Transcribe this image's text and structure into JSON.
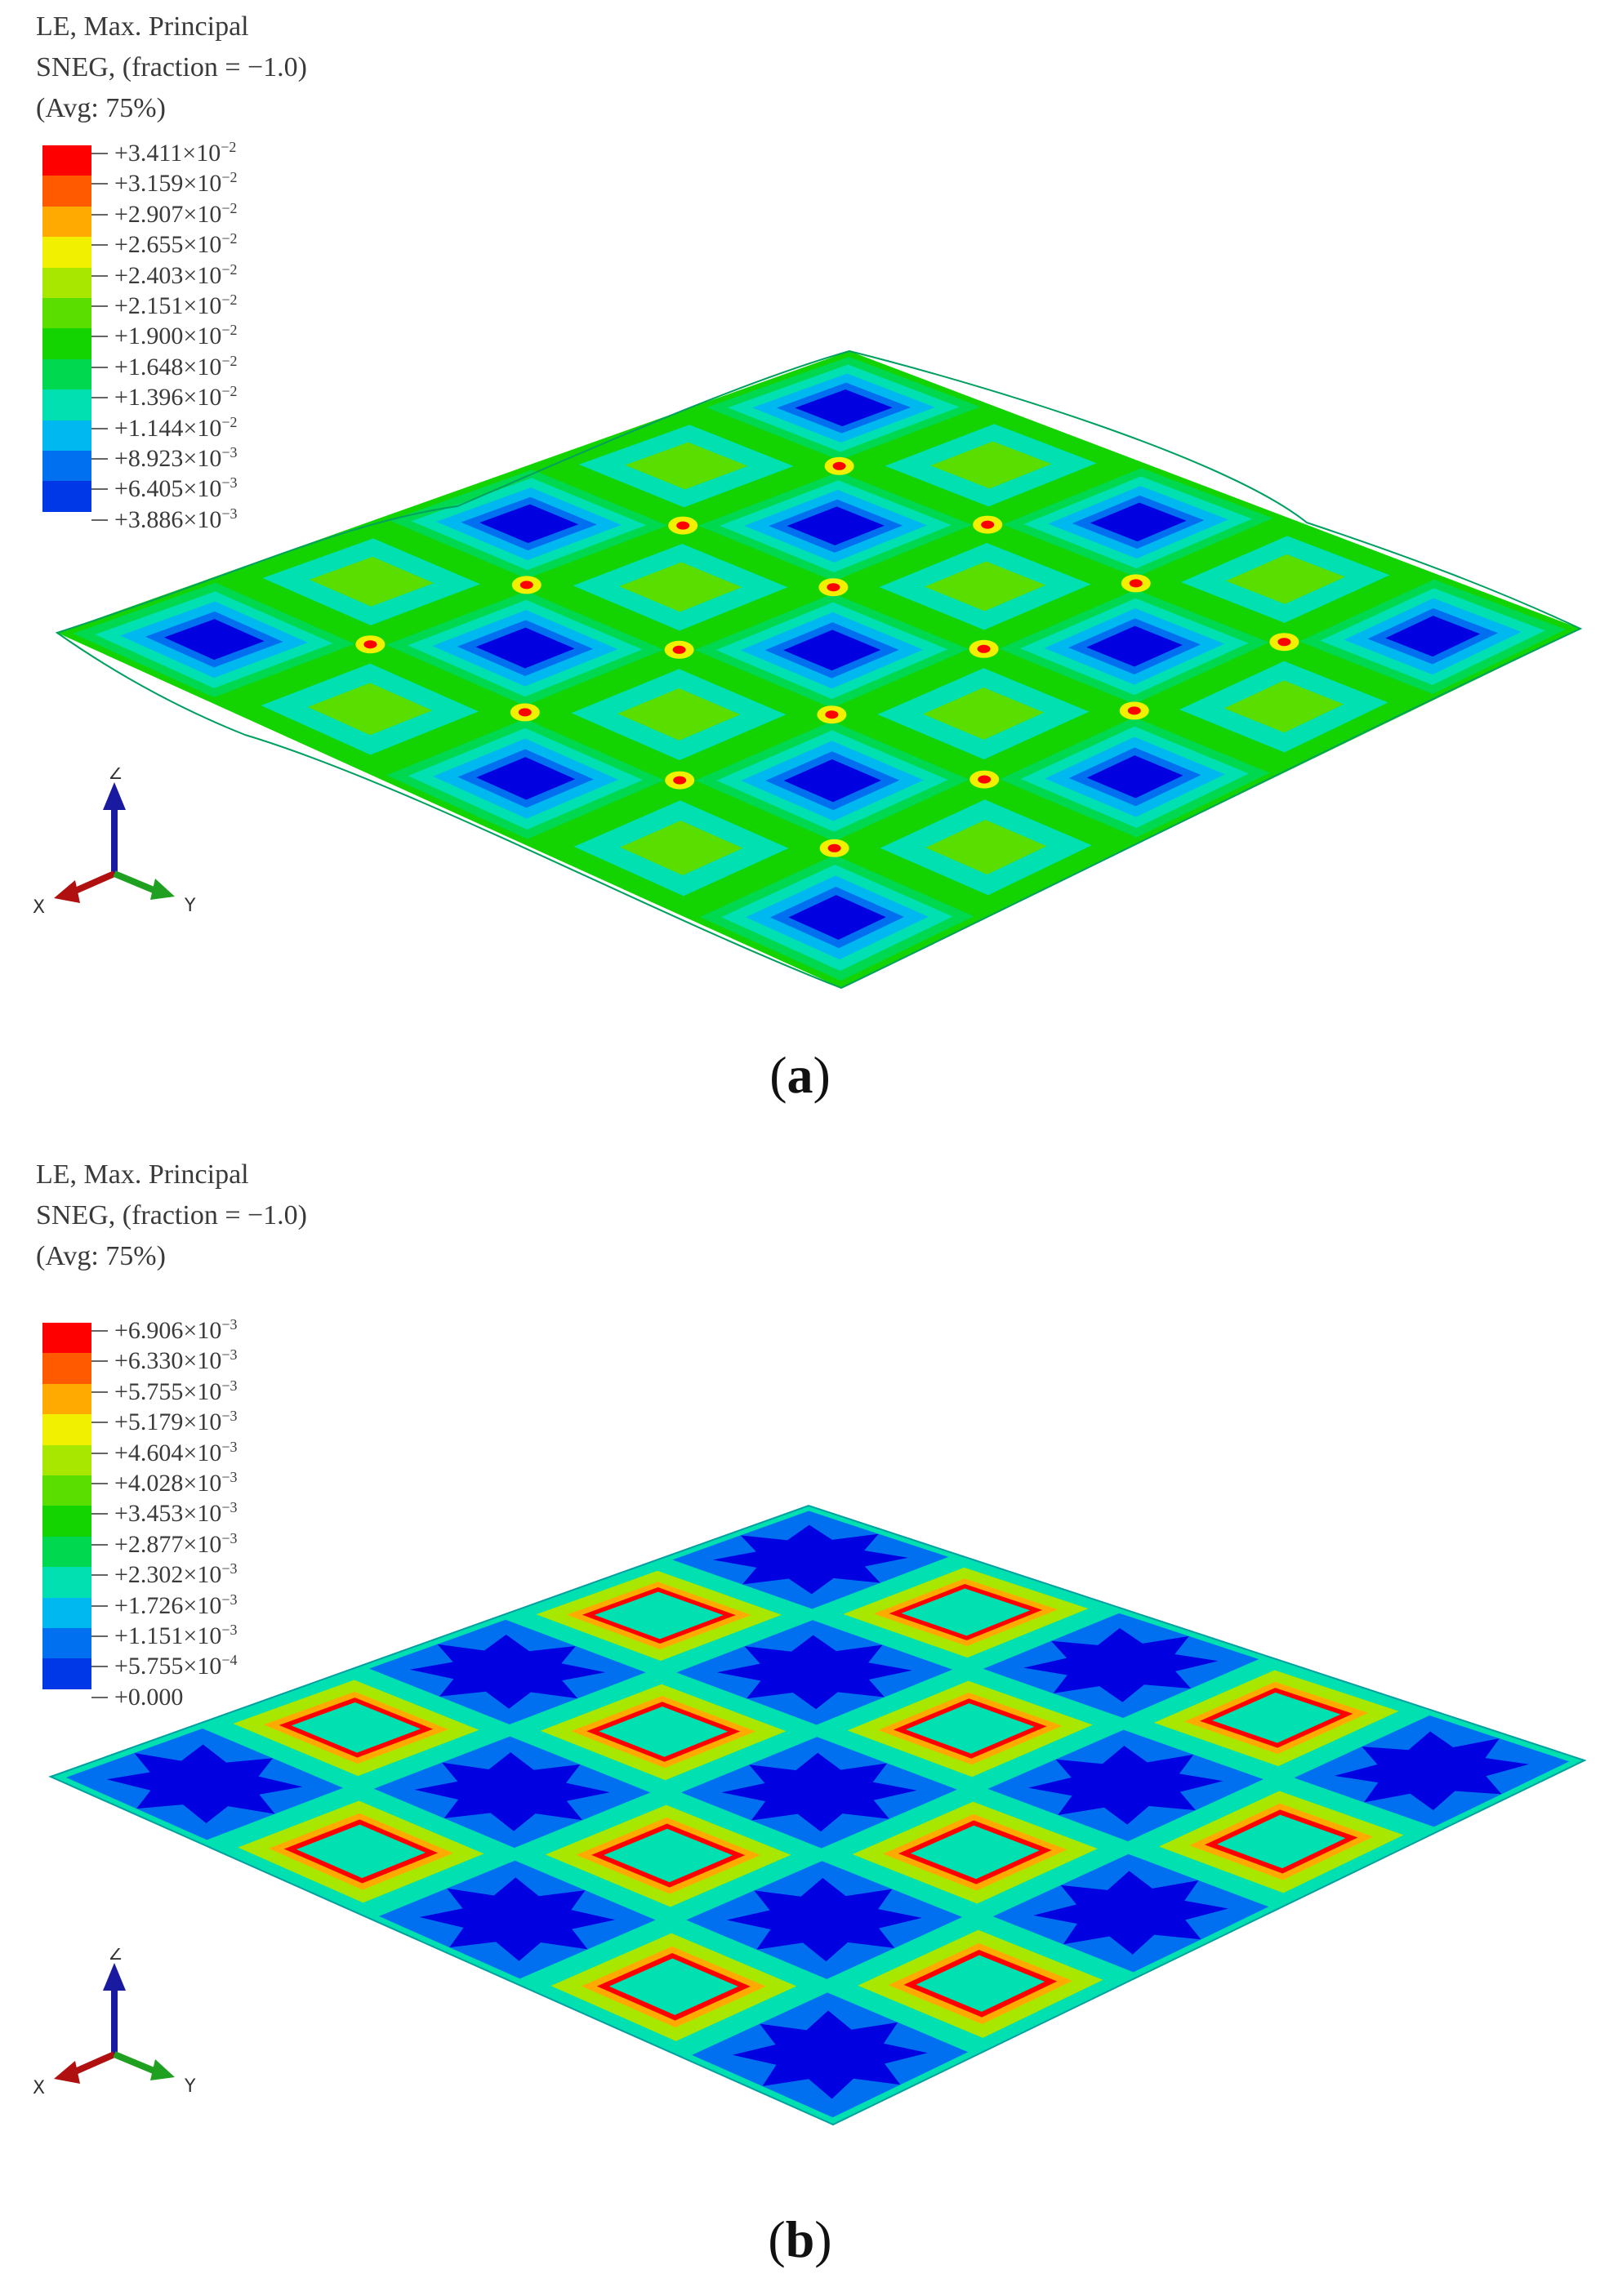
{
  "panels": [
    {
      "id": "a",
      "caption": "a",
      "legend": {
        "title_lines": [
          "LE, Max. Principal",
          "SNEG, (fraction = −1.0)",
          "(Avg: 75%)"
        ],
        "labels": [
          {
            "mant": "+3.411×10",
            "exp": "−2"
          },
          {
            "mant": "+3.159×10",
            "exp": "−2"
          },
          {
            "mant": "+2.907×10",
            "exp": "−2"
          },
          {
            "mant": "+2.655×10",
            "exp": "−2"
          },
          {
            "mant": "+2.403×10",
            "exp": "−2"
          },
          {
            "mant": "+2.151×10",
            "exp": "−2"
          },
          {
            "mant": "+1.900×10",
            "exp": "−2"
          },
          {
            "mant": "+1.648×10",
            "exp": "−2"
          },
          {
            "mant": "+1.396×10",
            "exp": "−2"
          },
          {
            "mant": "+1.144×10",
            "exp": "−2"
          },
          {
            "mant": "+8.923×10",
            "exp": "−3"
          },
          {
            "mant": "+6.405×10",
            "exp": "−3"
          },
          {
            "mant": "+3.886×10",
            "exp": "−3"
          }
        ]
      },
      "axes": {
        "z": "Z",
        "x": "X",
        "y": "Y"
      }
    },
    {
      "id": "b",
      "caption": "b",
      "legend": {
        "title_lines": [
          "LE, Max. Principal",
          "SNEG, (fraction = −1.0)",
          "(Avg: 75%)"
        ],
        "labels": [
          {
            "mant": "+6.906×10",
            "exp": "−3"
          },
          {
            "mant": "+6.330×10",
            "exp": "−3"
          },
          {
            "mant": "+5.755×10",
            "exp": "−3"
          },
          {
            "mant": "+5.179×10",
            "exp": "−3"
          },
          {
            "mant": "+4.604×10",
            "exp": "−3"
          },
          {
            "mant": "+4.028×10",
            "exp": "−3"
          },
          {
            "mant": "+3.453×10",
            "exp": "−3"
          },
          {
            "mant": "+2.877×10",
            "exp": "−3"
          },
          {
            "mant": "+2.302×10",
            "exp": "−3"
          },
          {
            "mant": "+1.726×10",
            "exp": "−3"
          },
          {
            "mant": "+1.151×10",
            "exp": "−3"
          },
          {
            "mant": "+5.755×10",
            "exp": "−4"
          },
          {
            "mant": "+0.000",
            "exp": ""
          }
        ]
      },
      "axes": {
        "z": "Z",
        "x": "X",
        "y": "Y"
      }
    }
  ],
  "colormap": [
    "#ff0000",
    "#ff5a00",
    "#ffaa00",
    "#f0f000",
    "#a8e800",
    "#5ade00",
    "#13d400",
    "#00d850",
    "#00e0b0",
    "#00b8f0",
    "#0070f0",
    "#0038e8",
    "#0000e0"
  ]
}
